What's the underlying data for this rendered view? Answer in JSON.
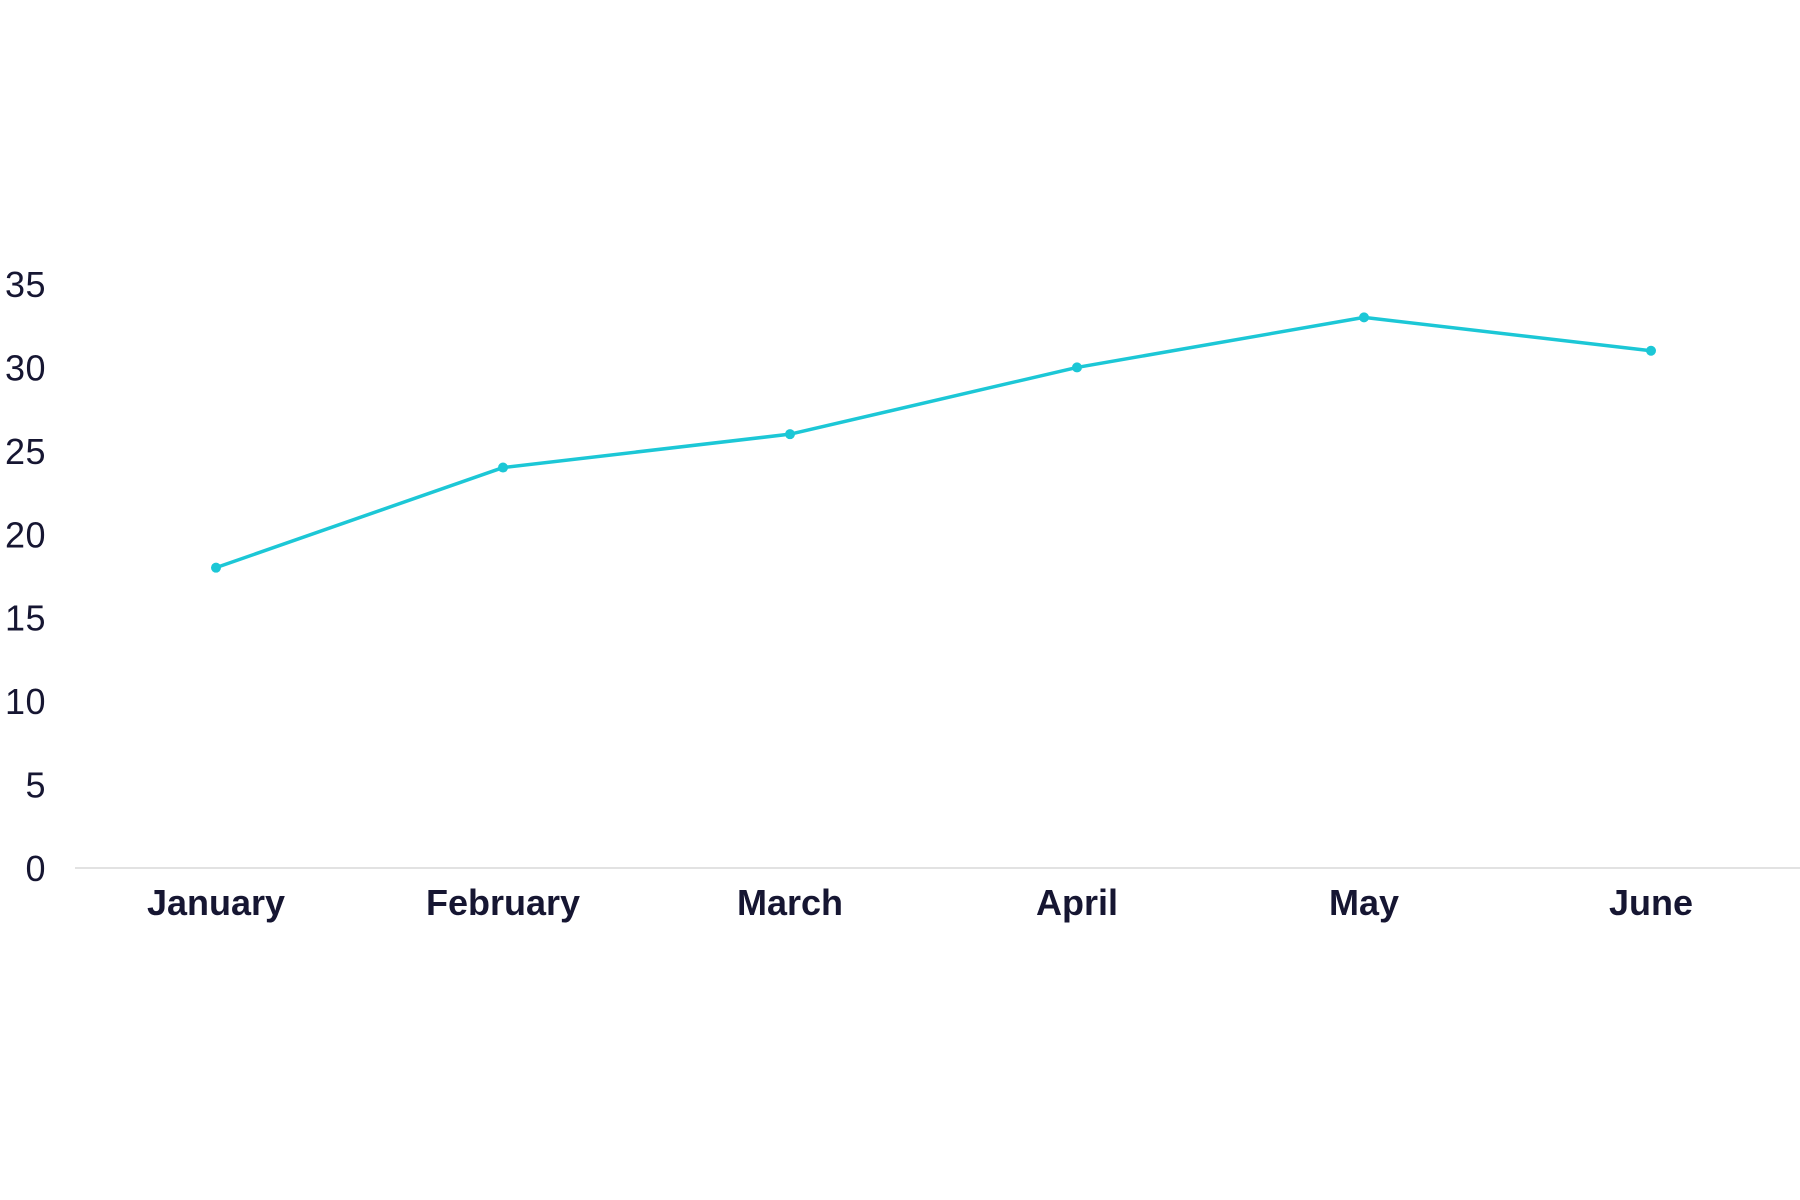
{
  "chart_data": {
    "type": "line",
    "title": "",
    "xlabel": "",
    "ylabel": "",
    "categories": [
      "January",
      "February",
      "March",
      "April",
      "May",
      "June"
    ],
    "series": [
      {
        "values": [
          18,
          24,
          26,
          30,
          33,
          31
        ]
      }
    ],
    "ylim": [
      0,
      35
    ],
    "yticks": [
      0,
      5,
      10,
      15,
      20,
      25,
      30,
      35
    ],
    "grid": false,
    "legend": "none",
    "colors": {
      "line": "#1cc7d6",
      "axis": "#d9d9d9",
      "text": "#161632"
    }
  }
}
